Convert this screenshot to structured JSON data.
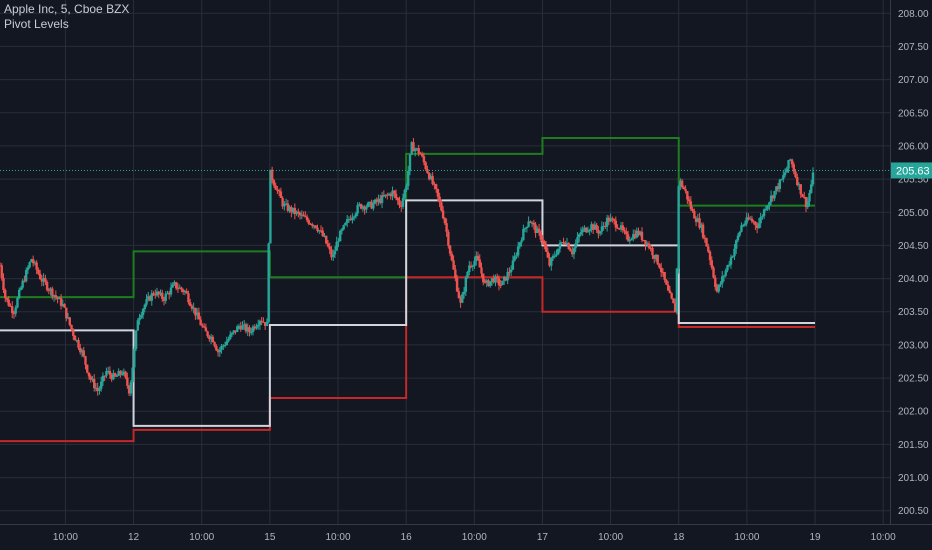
{
  "legend": {
    "symbol_line": "Apple Inc, 5, Cboe BZX",
    "indicator": "Pivot Levels"
  },
  "colors": {
    "background": "#131722",
    "grid": "#2a2e39",
    "up": "#26a69a",
    "down": "#ef5350",
    "pivot_resistance": "#1e7d1e",
    "pivot_pp": "#d1d4dc",
    "pivot_support": "#c62828",
    "price_line": "#26a69a"
  },
  "chart_data": {
    "type": "candlestick",
    "ylim": [
      200.3,
      208.2
    ],
    "y_ticks": [
      "208.00",
      "207.50",
      "207.00",
      "206.50",
      "206.00",
      "205.50",
      "205.00",
      "204.50",
      "204.00",
      "203.50",
      "203.00",
      "202.50",
      "202.00",
      "201.50",
      "201.00",
      "200.50"
    ],
    "y_tick_values": [
      208.0,
      207.5,
      207.0,
      206.5,
      206.0,
      205.5,
      205.0,
      204.5,
      204.0,
      203.5,
      203.0,
      202.5,
      202.0,
      201.5,
      201.0,
      200.5
    ],
    "x_ticks": [
      "10:00",
      "12",
      "10:00",
      "15",
      "10:00",
      "16",
      "10:00",
      "17",
      "10:00",
      "18",
      "10:00",
      "19",
      "10:00"
    ],
    "x_tick_days": [
      0.5,
      1,
      1.5,
      2,
      2.5,
      3,
      3.5,
      4,
      4.5,
      5,
      5.5,
      6,
      6.5
    ],
    "xlim": [
      0.02,
      6.55
    ],
    "last_price": 205.63,
    "last_price_label": "205.63",
    "pivot_levels": {
      "resistance": [
        {
          "from": 0.02,
          "to": 1.0,
          "value": 203.72
        },
        {
          "from": 1.0,
          "to": 2.0,
          "value": 204.41
        },
        {
          "from": 2.0,
          "to": 3.0,
          "value": 204.02
        },
        {
          "from": 3.0,
          "to": 4.0,
          "value": 205.88
        },
        {
          "from": 4.0,
          "to": 5.0,
          "value": 206.12
        },
        {
          "from": 5.0,
          "to": 6.0,
          "value": 205.1
        }
      ],
      "pivot": [
        {
          "from": 0.02,
          "to": 1.0,
          "value": 203.22
        },
        {
          "from": 1.0,
          "to": 2.0,
          "value": 201.78
        },
        {
          "from": 2.0,
          "to": 3.0,
          "value": 203.3
        },
        {
          "from": 3.0,
          "to": 4.0,
          "value": 205.18
        },
        {
          "from": 4.0,
          "to": 5.0,
          "value": 204.5
        },
        {
          "from": 5.0,
          "to": 6.0,
          "value": 203.33
        }
      ],
      "support": [
        {
          "from": 0.02,
          "to": 1.0,
          "value": 201.55
        },
        {
          "from": 1.0,
          "to": 2.0,
          "value": 201.72
        },
        {
          "from": 2.0,
          "to": 3.0,
          "value": 202.2
        },
        {
          "from": 3.0,
          "to": 4.0,
          "value": 204.02
        },
        {
          "from": 4.0,
          "to": 5.0,
          "value": 203.5
        },
        {
          "from": 5.0,
          "to": 6.0,
          "value": 203.27
        }
      ]
    },
    "price_path": [
      [
        0.02,
        204.2
      ],
      [
        0.06,
        203.7
      ],
      [
        0.12,
        203.5
      ],
      [
        0.18,
        203.9
      ],
      [
        0.25,
        204.3
      ],
      [
        0.32,
        204.0
      ],
      [
        0.4,
        203.8
      ],
      [
        0.48,
        203.6
      ],
      [
        0.55,
        203.2
      ],
      [
        0.62,
        202.9
      ],
      [
        0.68,
        202.5
      ],
      [
        0.74,
        202.3
      ],
      [
        0.8,
        202.6
      ],
      [
        0.86,
        202.5
      ],
      [
        0.92,
        202.6
      ],
      [
        0.97,
        202.3
      ],
      [
        1.0,
        202.8
      ],
      [
        1.03,
        203.4
      ],
      [
        1.08,
        203.6
      ],
      [
        1.15,
        203.8
      ],
      [
        1.22,
        203.7
      ],
      [
        1.3,
        203.9
      ],
      [
        1.38,
        203.8
      ],
      [
        1.45,
        203.5
      ],
      [
        1.52,
        203.2
      ],
      [
        1.58,
        203.1
      ],
      [
        1.62,
        202.9
      ],
      [
        1.7,
        203.1
      ],
      [
        1.78,
        203.3
      ],
      [
        1.85,
        203.2
      ],
      [
        1.93,
        203.4
      ],
      [
        1.98,
        203.3
      ],
      [
        2.0,
        205.6
      ],
      [
        2.04,
        205.4
      ],
      [
        2.1,
        205.1
      ],
      [
        2.18,
        205.0
      ],
      [
        2.26,
        204.9
      ],
      [
        2.34,
        204.8
      ],
      [
        2.4,
        204.6
      ],
      [
        2.46,
        204.3
      ],
      [
        2.5,
        204.6
      ],
      [
        2.58,
        204.9
      ],
      [
        2.66,
        205.1
      ],
      [
        2.74,
        205.1
      ],
      [
        2.82,
        205.2
      ],
      [
        2.9,
        205.3
      ],
      [
        2.96,
        205.1
      ],
      [
        3.0,
        205.4
      ],
      [
        3.04,
        206.0
      ],
      [
        3.1,
        205.9
      ],
      [
        3.16,
        205.6
      ],
      [
        3.22,
        205.3
      ],
      [
        3.28,
        204.9
      ],
      [
        3.34,
        204.2
      ],
      [
        3.4,
        203.6
      ],
      [
        3.46,
        204.2
      ],
      [
        3.52,
        204.3
      ],
      [
        3.58,
        203.9
      ],
      [
        3.64,
        204.0
      ],
      [
        3.7,
        203.9
      ],
      [
        3.78,
        204.2
      ],
      [
        3.84,
        204.6
      ],
      [
        3.9,
        204.9
      ],
      [
        3.96,
        204.7
      ],
      [
        4.0,
        204.6
      ],
      [
        4.05,
        204.2
      ],
      [
        4.1,
        204.4
      ],
      [
        4.16,
        204.6
      ],
      [
        4.22,
        204.4
      ],
      [
        4.28,
        204.7
      ],
      [
        4.36,
        204.8
      ],
      [
        4.42,
        204.7
      ],
      [
        4.48,
        204.9
      ],
      [
        4.56,
        204.8
      ],
      [
        4.62,
        204.6
      ],
      [
        4.7,
        204.7
      ],
      [
        4.78,
        204.5
      ],
      [
        4.86,
        204.2
      ],
      [
        4.92,
        203.8
      ],
      [
        4.98,
        203.5
      ],
      [
        5.0,
        205.5
      ],
      [
        5.05,
        205.3
      ],
      [
        5.1,
        205.0
      ],
      [
        5.16,
        204.8
      ],
      [
        5.22,
        204.4
      ],
      [
        5.28,
        203.8
      ],
      [
        5.34,
        204.1
      ],
      [
        5.4,
        204.4
      ],
      [
        5.46,
        204.8
      ],
      [
        5.52,
        204.9
      ],
      [
        5.58,
        204.8
      ],
      [
        5.64,
        205.1
      ],
      [
        5.7,
        205.3
      ],
      [
        5.76,
        205.5
      ],
      [
        5.82,
        205.8
      ],
      [
        5.88,
        205.4
      ],
      [
        5.94,
        205.1
      ],
      [
        5.99,
        205.6
      ]
    ]
  }
}
